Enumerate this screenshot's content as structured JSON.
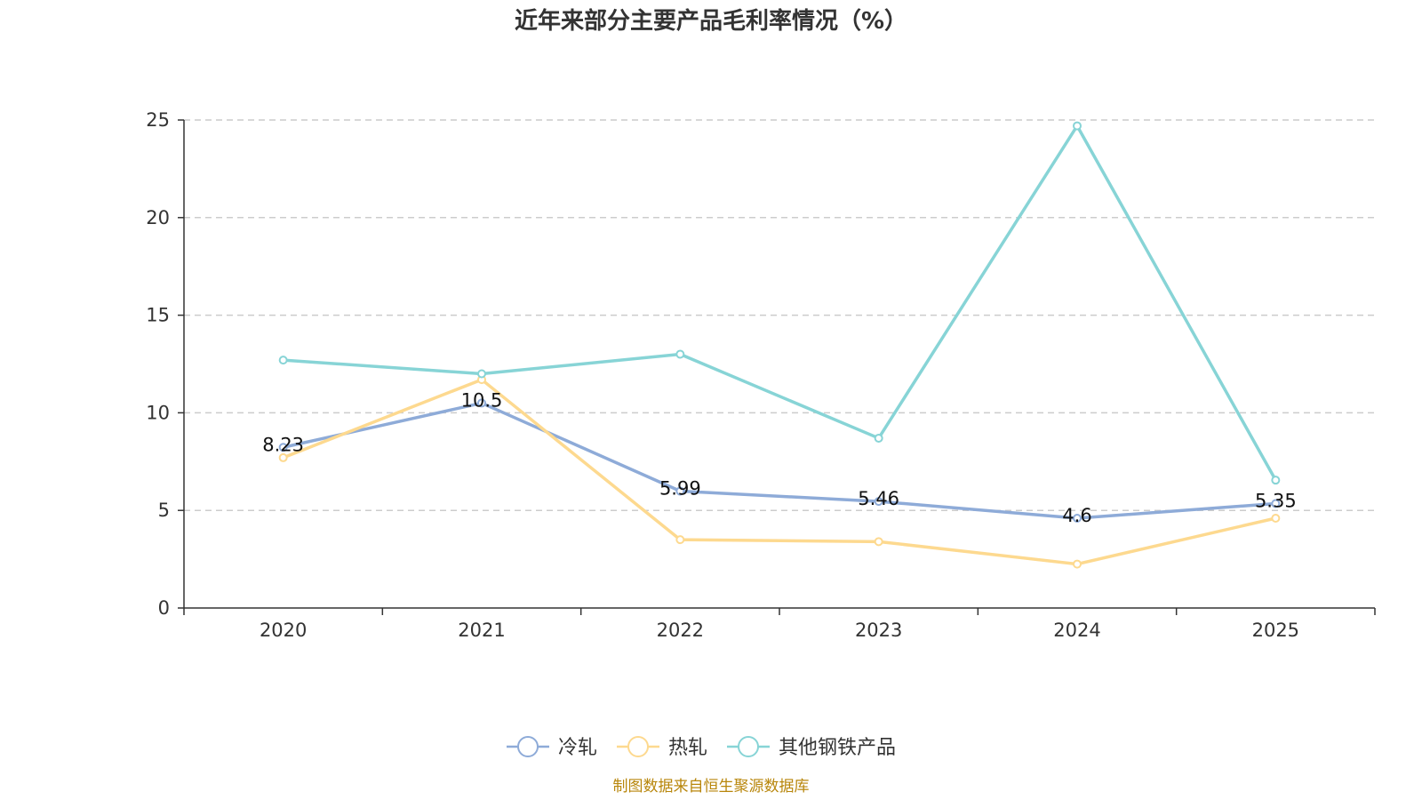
{
  "chart_data": {
    "type": "line",
    "title": "近年来部分主要产品毛利率情况（%）",
    "xlabel": "",
    "ylabel": "",
    "categories": [
      "2020",
      "2021",
      "2022",
      "2023",
      "2024",
      "2025"
    ],
    "ylim": [
      0,
      25
    ],
    "yticks": [
      0,
      5,
      10,
      15,
      20,
      25
    ],
    "grid": true,
    "legend_position": "bottom",
    "series": [
      {
        "name": "冷轧",
        "color": "#8eabd8",
        "values": [
          8.23,
          10.5,
          5.99,
          5.46,
          4.6,
          5.35
        ],
        "labels": [
          "8.23",
          "10.5",
          "5.99",
          "5.46",
          "4.6",
          "5.35"
        ]
      },
      {
        "name": "热轧",
        "color": "#fdd98f",
        "values": [
          7.7,
          11.7,
          3.5,
          3.4,
          2.25,
          4.6
        ]
      },
      {
        "name": "其他钢铁产品",
        "color": "#87d4d6",
        "values": [
          12.7,
          12.0,
          13.0,
          8.7,
          24.7,
          6.55
        ]
      }
    ],
    "source": "制图数据来自恒生聚源数据库"
  }
}
